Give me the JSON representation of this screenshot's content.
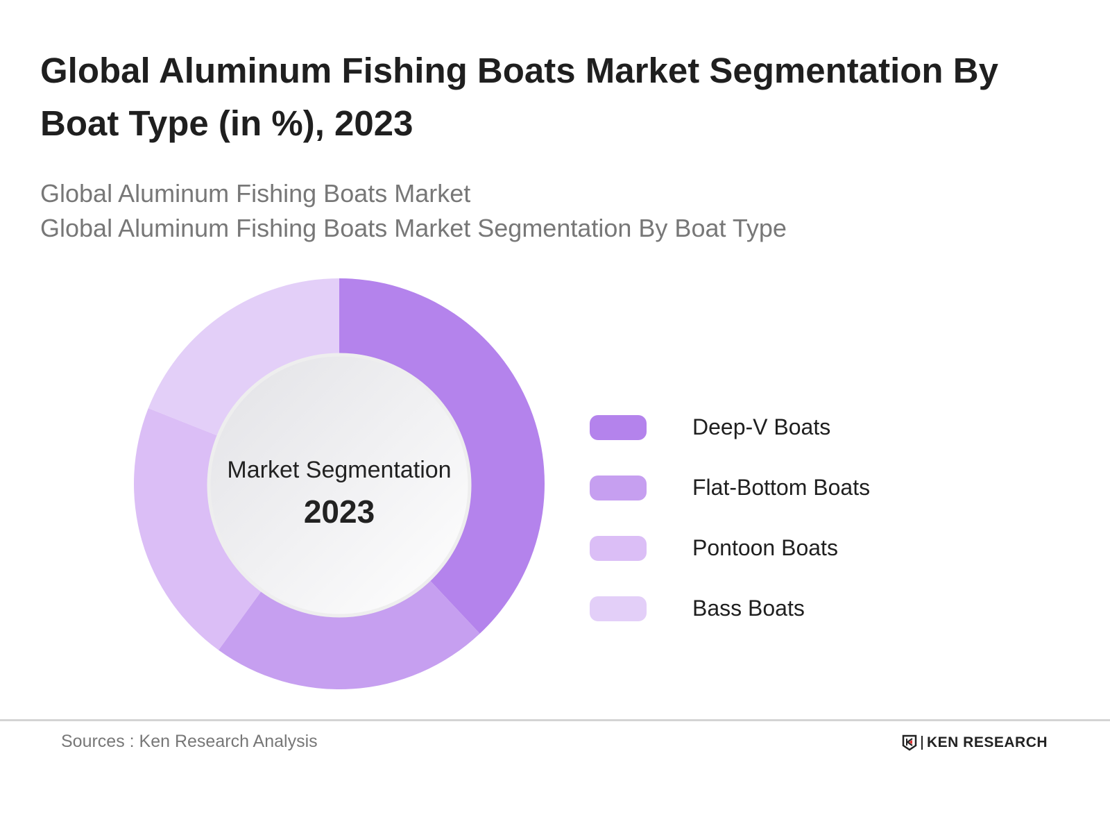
{
  "header": {
    "title": "Global Aluminum Fishing Boats Market Segmentation By Boat Type (in %), 2023",
    "subtitle_1": "Global Aluminum Fishing Boats Market",
    "subtitle_2": "Global Aluminum Fishing Boats Market Segmentation By Boat Type"
  },
  "center": {
    "label": "Market Segmentation",
    "year": "2023"
  },
  "chart_data": {
    "type": "pie",
    "subtype": "donut",
    "categories": [
      "Deep-V Boats",
      "Flat-Bottom Boats",
      "Pontoon Boats",
      "Bass Boats"
    ],
    "values": [
      38,
      22,
      21,
      19
    ],
    "colors": [
      "#b483ec",
      "#c69ff0",
      "#dbbef6",
      "#e3cff8"
    ],
    "legend": "right",
    "start": "top, clockwise"
  },
  "footer": {
    "source": "Sources : Ken Research Analysis",
    "logo": "KEN RESEARCH"
  }
}
